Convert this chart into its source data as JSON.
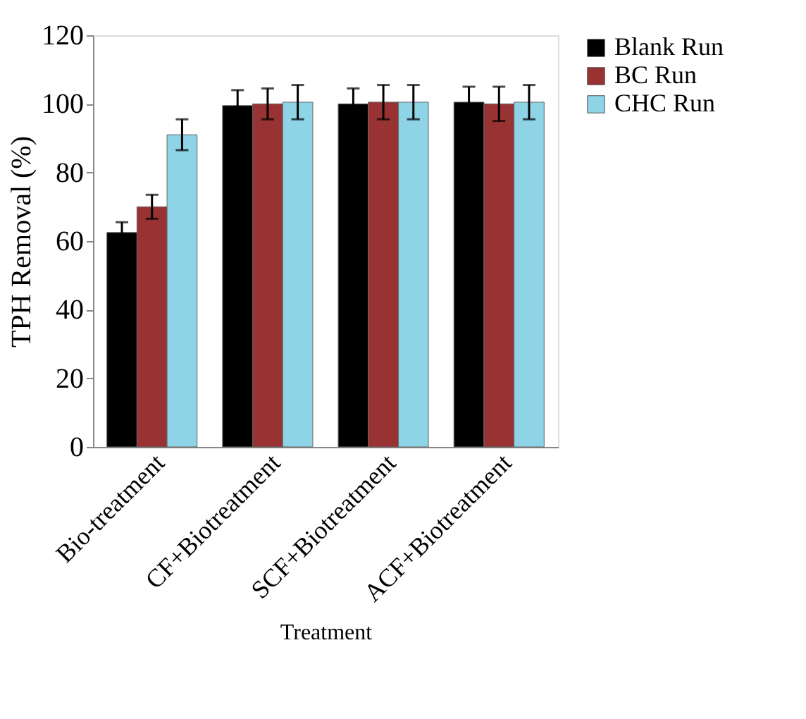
{
  "chart_data": {
    "type": "bar",
    "xlabel": "Treatment",
    "ylabel": "TPH Removal (%)",
    "categories": [
      "Bio-treatment",
      "CF+Biotreatment",
      "SCF+Biotreatment",
      "ACF+Biotreatment"
    ],
    "series": [
      {
        "name": "Blank Run",
        "color": "#000000",
        "values": [
          62.5,
          99.5,
          100,
          100.5
        ],
        "errors": [
          3,
          4.5,
          4.5,
          4.5
        ]
      },
      {
        "name": "BC Run",
        "color": "#993333",
        "values": [
          70,
          100,
          100.5,
          100
        ],
        "errors": [
          3.5,
          4.5,
          5,
          5
        ]
      },
      {
        "name": "CHC Run",
        "color": "#8ed3e6",
        "values": [
          91,
          100.5,
          100.5,
          100.5
        ],
        "errors": [
          4.5,
          5,
          5,
          5
        ]
      }
    ],
    "ylim": [
      0,
      120
    ],
    "yticks": [
      0,
      20,
      40,
      60,
      80,
      100,
      120
    ],
    "grid": false,
    "legend": "right"
  }
}
